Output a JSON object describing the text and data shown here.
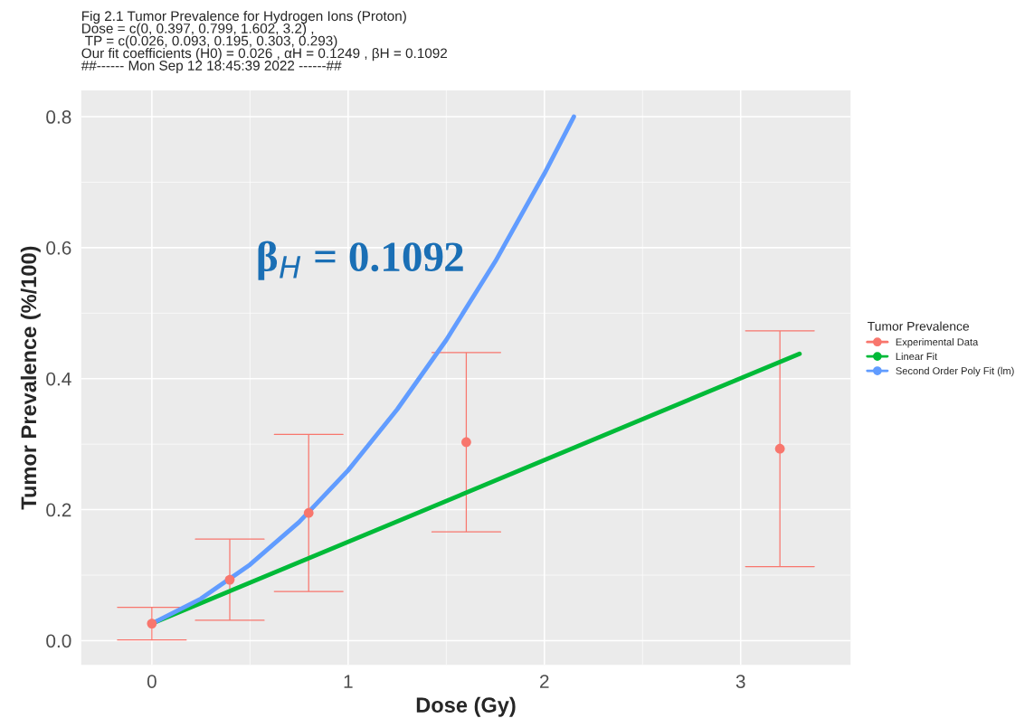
{
  "chart_data": {
    "type": "scatter",
    "title": "Fig 2.1 Tumor Prevalence for Hydrogen Ions (Proton)",
    "subtitle": "Dose = c(0, 0.397, 0.799, 1.602, 3.2) ,\n TP = c(0.026, 0.093, 0.195, 0.303, 0.293)\nOur fit coefficients (H0) = 0.026 , αH = 0.1249 , βH = 0.1092\n##------ Mon Sep 12 18:45:39 2022 ------##",
    "xlabel": "Dose (Gy)",
    "ylabel": "Tumor Prevalence (%/100)",
    "legend_title": "Tumor Prevalence",
    "annotations": [
      "β$_{H}$ = 0.1092"
    ],
    "series": [
      {
        "name": "Experimental Data",
        "type": "scatter",
        "marker": "circle",
        "color": "#f8766d",
        "x": [
          0,
          0.397,
          0.799,
          1.602,
          3.2
        ],
        "values": [
          0.026,
          0.093,
          0.195,
          0.303,
          0.293
        ],
        "errors": [
          0.025,
          0.062,
          0.12,
          0.137,
          0.18
        ]
      },
      {
        "name": "Linear Fit",
        "type": "line",
        "color": "#00ba38",
        "x": [
          0,
          3.3
        ],
        "values": [
          0.026,
          0.438
        ]
      },
      {
        "name": "Second Order Poly Fit (lm)",
        "type": "line",
        "color": "#619cff",
        "x": [
          0,
          0.25,
          0.5,
          0.75,
          1.0,
          1.25,
          1.5,
          1.75,
          2.0,
          2.15
        ],
        "values": [
          0.026,
          0.064,
          0.116,
          0.181,
          0.26,
          0.353,
          0.459,
          0.579,
          0.713,
          0.8
        ]
      }
    ],
    "xlim": [
      -0.36,
      3.56
    ],
    "ylim": [
      -0.037,
      0.84
    ],
    "xticks": [
      0,
      1,
      2,
      3
    ],
    "yticks": [
      {
        "value": 0,
        "label": "0.0"
      },
      0.2,
      0.4,
      0.6,
      0.8
    ],
    "grid": true,
    "legend": "right"
  }
}
